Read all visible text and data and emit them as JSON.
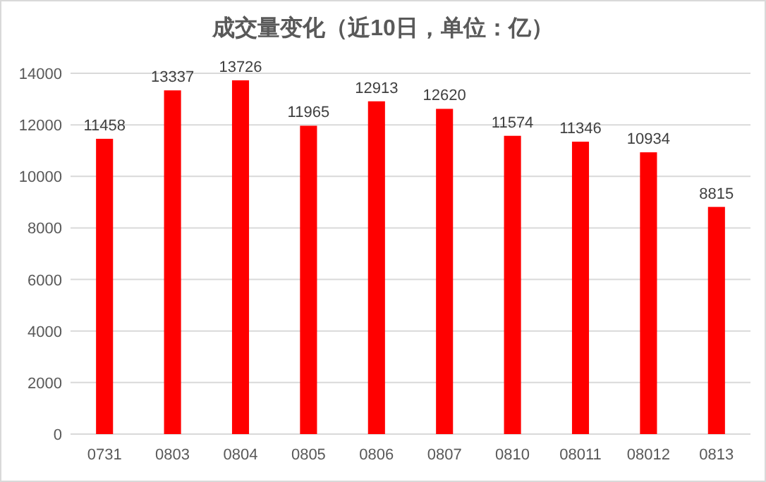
{
  "chart_data": {
    "type": "bar",
    "title": "成交量变化（近10日，单位：亿）",
    "categories": [
      "0731",
      "0803",
      "0804",
      "0805",
      "0806",
      "0807",
      "0810",
      "08011",
      "08012",
      "0813"
    ],
    "values": [
      11458,
      13337,
      13726,
      11965,
      12913,
      12620,
      11574,
      11346,
      10934,
      8815
    ],
    "color": "#ff0000",
    "ylim": [
      0,
      14000
    ],
    "yticks": [
      0,
      2000,
      4000,
      6000,
      8000,
      10000,
      12000,
      14000
    ],
    "grid": "y",
    "data_labels": true
  }
}
